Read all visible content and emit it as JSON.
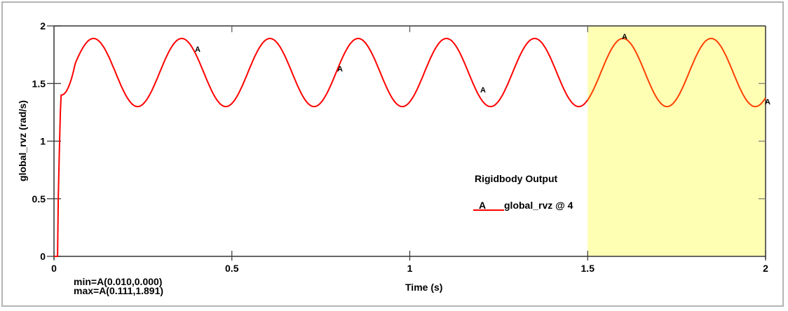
{
  "chart_data": {
    "type": "line",
    "title": "",
    "xlabel": "Time (s)",
    "ylabel": "global_rvz (rad/s)",
    "xlim": [
      0,
      2
    ],
    "ylim": [
      0,
      2
    ],
    "xticks": [
      "0",
      "0.5",
      "1",
      "1.5",
      "2"
    ],
    "yticks": [
      "0",
      "0.5",
      "1",
      "1.5",
      "2"
    ],
    "grid": false,
    "legend": {
      "title": "Rigidbody Output",
      "entries": [
        {
          "symbol": "A",
          "label": "global_rvz @ 4",
          "color": "#ff0000"
        }
      ],
      "position": "inside-right"
    },
    "series": [
      {
        "name": "A_global_rvz @ 4",
        "color": "#ff0000",
        "description": "Step rise from 0 at t=0.010 to ~1.40 at t~0.02, then sinusoidal oscillation between ~1.30 and ~1.89 with period ~0.248 s",
        "x": [
          0.0,
          0.01,
          0.012,
          0.015,
          0.018,
          0.02,
          0.04,
          0.06,
          0.08,
          0.111,
          0.14,
          0.17,
          0.2,
          0.235,
          0.27,
          0.3,
          0.33,
          0.359,
          0.39,
          0.42,
          0.45,
          0.483,
          0.52,
          0.55,
          0.58,
          0.607,
          0.64,
          0.67,
          0.7,
          0.731,
          0.77,
          0.8,
          0.83,
          0.855,
          0.89,
          0.92,
          0.95,
          0.979,
          1.02,
          1.05,
          1.08,
          1.103,
          1.14,
          1.17,
          1.2,
          1.227,
          1.26,
          1.29,
          1.32,
          1.351,
          1.39,
          1.42,
          1.45,
          1.475,
          1.51,
          1.54,
          1.57,
          1.599,
          1.63,
          1.66,
          1.69,
          1.723,
          1.76,
          1.79,
          1.82,
          1.847,
          1.88,
          1.91,
          1.94,
          1.971,
          2.0
        ],
        "y": [
          0.0,
          0.0,
          0.5,
          0.9,
          1.25,
          1.4,
          1.5,
          1.64,
          1.78,
          1.891,
          1.82,
          1.63,
          1.42,
          1.3,
          1.4,
          1.6,
          1.8,
          1.891,
          1.82,
          1.62,
          1.41,
          1.3,
          1.4,
          1.6,
          1.8,
          1.891,
          1.82,
          1.62,
          1.41,
          1.3,
          1.4,
          1.6,
          1.8,
          1.891,
          1.82,
          1.62,
          1.41,
          1.3,
          1.4,
          1.6,
          1.8,
          1.891,
          1.82,
          1.62,
          1.41,
          1.3,
          1.4,
          1.6,
          1.8,
          1.891,
          1.82,
          1.62,
          1.41,
          1.3,
          1.4,
          1.6,
          1.8,
          1.891,
          1.82,
          1.62,
          1.41,
          1.3,
          1.4,
          1.6,
          1.8,
          1.891,
          1.82,
          1.62,
          1.41,
          1.3,
          1.32
        ]
      }
    ],
    "markers": [
      {
        "label": "A",
        "x": 0.4,
        "y": 1.79
      },
      {
        "label": "A",
        "x": 0.8,
        "y": 1.63
      },
      {
        "label": "A",
        "x": 1.2,
        "y": 1.45
      },
      {
        "label": "A",
        "x": 1.6,
        "y": 1.89
      },
      {
        "label": "A",
        "x": 2.0,
        "y": 1.34
      }
    ],
    "highlight_region": {
      "x_start": 1.5,
      "x_end": 2.0,
      "color": "#ffffb4"
    },
    "annotations": {
      "min": "min=A(0.010,0.000)",
      "max": "max=A(0.111,1.891)"
    }
  },
  "legend": {
    "title": "Rigidbody Output",
    "entry_symbol": "A",
    "entry_label": "global_rvz @ 4"
  },
  "axes": {
    "xlabel": "Time (s)",
    "ylabel": "global_rvz (rad/s)"
  },
  "stats": {
    "min": "min=A(0.010,0.000)",
    "max": "max=A(0.111,1.891)"
  },
  "colors": {
    "series": "#ff0000",
    "series_highlighted": "#ff4000",
    "highlight": "#ffffb4",
    "axis": "#000000",
    "frame": "#b4b4b4"
  }
}
